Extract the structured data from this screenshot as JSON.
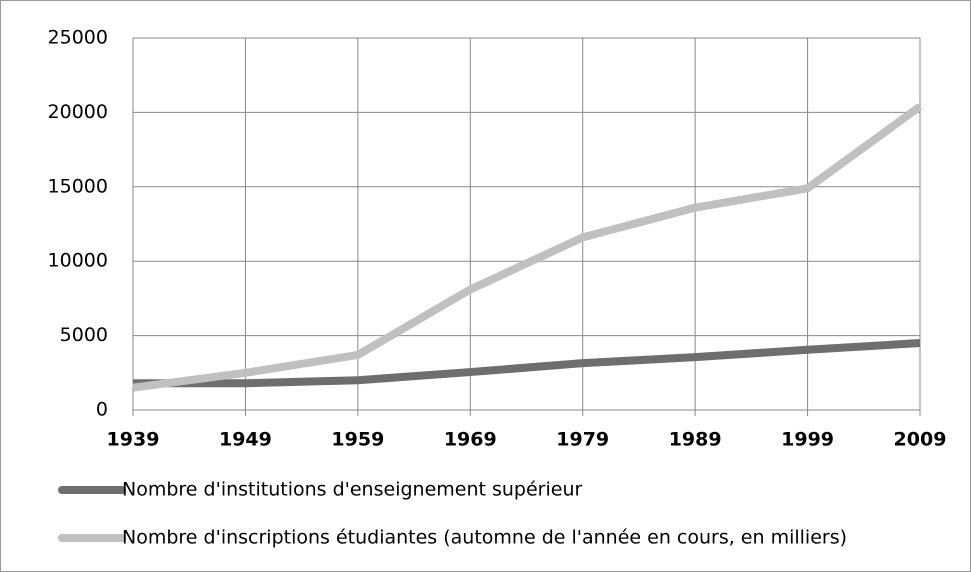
{
  "chart_data": {
    "type": "line",
    "categories": [
      "1939",
      "1949",
      "1959",
      "1969",
      "1979",
      "1989",
      "1999",
      "2009"
    ],
    "series": [
      {
        "name": "Nombre d'institutions d'enseignement supérieur",
        "color": "#6e6e6e",
        "values": [
          1800,
          1800,
          2000,
          2550,
          3150,
          3550,
          4050,
          4500
        ]
      },
      {
        "name": "Nombre d'inscriptions étudiantes (automne de l'année en cours, en milliers)",
        "color": "#c0c0c0",
        "values": [
          1500,
          2500,
          3700,
          8100,
          11600,
          13600,
          14900,
          20400
        ]
      }
    ],
    "ylim": [
      0,
      25000
    ],
    "yticks": [
      0,
      5000,
      10000,
      15000,
      20000,
      25000
    ],
    "grid": true,
    "legend": "bottom"
  }
}
